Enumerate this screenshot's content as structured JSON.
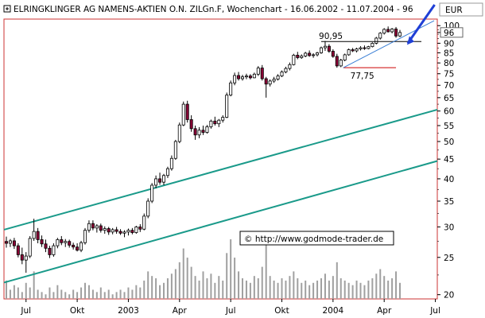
{
  "title_bar": {
    "title": "ELRINGKLINGER AG NAMENS-AKTIEN O.N. ZILGn.F, Wochenchart - 16.06.2002 - 11.07.2004 - 96",
    "currency": "EUR"
  },
  "watermark": "© http://www.godmode-trader.de",
  "chart_data": {
    "type": "candlestick",
    "scale": "log",
    "ylim": [
      19.5,
      104
    ],
    "y_ticks": [
      20,
      25,
      30,
      35,
      40,
      45,
      50,
      55,
      60,
      65,
      70,
      75,
      80,
      85,
      90,
      96,
      100
    ],
    "last_price_label": "96",
    "x_ticks": [
      {
        "label": "Jul",
        "t": 5
      },
      {
        "label": "Okt",
        "t": 18
      },
      {
        "label": "2003",
        "t": 31
      },
      {
        "label": "Apr",
        "t": 44
      },
      {
        "label": "Jul",
        "t": 57
      },
      {
        "label": "Okt",
        "t": 70
      },
      {
        "label": "2004",
        "t": 83
      },
      {
        "label": "Apr",
        "t": 96
      },
      {
        "label": "Jul",
        "t": 109
      }
    ],
    "candles": [
      [
        27.5,
        28.3,
        26.5,
        27.2
      ],
      [
        27.2,
        27.9,
        26.6,
        27.6
      ],
      [
        27.6,
        28.1,
        26.3,
        26.8
      ],
      [
        26.8,
        27.2,
        25.0,
        25.4
      ],
      [
        25.4,
        26.5,
        24.0,
        24.6
      ],
      [
        24.6,
        25.8,
        22.8,
        25.2
      ],
      [
        25.2,
        28.4,
        24.9,
        28.0
      ],
      [
        28.0,
        31.5,
        27.6,
        29.2
      ],
      [
        29.2,
        29.8,
        27.2,
        27.8
      ],
      [
        27.8,
        28.5,
        26.6,
        27.1
      ],
      [
        27.1,
        27.8,
        25.8,
        26.4
      ],
      [
        26.4,
        26.8,
        24.9,
        25.4
      ],
      [
        25.4,
        27.2,
        25.1,
        26.8
      ],
      [
        26.8,
        28.1,
        26.4,
        27.8
      ],
      [
        27.8,
        28.4,
        26.9,
        27.3
      ],
      [
        27.3,
        27.9,
        26.6,
        27.5
      ],
      [
        27.5,
        27.8,
        26.5,
        26.9
      ],
      [
        26.9,
        27.3,
        26.2,
        26.6
      ],
      [
        26.6,
        27.2,
        25.9,
        26.1
      ],
      [
        26.1,
        27.6,
        25.8,
        27.3
      ],
      [
        27.3,
        29.8,
        27.0,
        29.4
      ],
      [
        29.4,
        31.2,
        29.0,
        30.6
      ],
      [
        30.6,
        31.2,
        29.4,
        29.8
      ],
      [
        29.8,
        30.5,
        29.0,
        30.2
      ],
      [
        30.2,
        30.6,
        29.0,
        29.4
      ],
      [
        29.4,
        30.1,
        28.8,
        29.7
      ],
      [
        29.7,
        30.0,
        28.6,
        29.1
      ],
      [
        29.1,
        29.8,
        28.7,
        29.5
      ],
      [
        29.5,
        30.0,
        28.8,
        29.2
      ],
      [
        29.2,
        29.6,
        28.6,
        28.9
      ],
      [
        28.9,
        29.4,
        28.2,
        29.1
      ],
      [
        29.1,
        29.7,
        28.5,
        29.4
      ],
      [
        29.4,
        29.8,
        28.7,
        29.0
      ],
      [
        29.0,
        30.2,
        28.8,
        30.0
      ],
      [
        30.0,
        30.5,
        29.1,
        29.6
      ],
      [
        29.6,
        32.5,
        29.4,
        32.0
      ],
      [
        32.0,
        35.6,
        31.6,
        35.0
      ],
      [
        35.0,
        39.0,
        34.6,
        38.5
      ],
      [
        38.5,
        40.8,
        37.8,
        40.0
      ],
      [
        40.0,
        41.5,
        38.6,
        39.2
      ],
      [
        39.2,
        41.2,
        38.5,
        40.8
      ],
      [
        40.8,
        43.0,
        40.2,
        42.5
      ],
      [
        42.5,
        46.0,
        42.0,
        45.2
      ],
      [
        45.2,
        50.5,
        44.8,
        50.0
      ],
      [
        50.0,
        56.0,
        49.5,
        55.2
      ],
      [
        55.2,
        63.5,
        54.8,
        62.5
      ],
      [
        62.5,
        63.8,
        56.0,
        57.0
      ],
      [
        57.0,
        58.5,
        53.0,
        54.0
      ],
      [
        54.0,
        55.0,
        50.5,
        52.0
      ],
      [
        52.0,
        54.5,
        51.0,
        53.5
      ],
      [
        53.5,
        55.0,
        52.0,
        52.8
      ],
      [
        52.8,
        55.2,
        52.4,
        54.6
      ],
      [
        54.6,
        57.0,
        54.0,
        56.5
      ],
      [
        56.5,
        58.0,
        55.0,
        55.6
      ],
      [
        55.6,
        57.2,
        54.5,
        56.8
      ],
      [
        56.8,
        58.5,
        56.0,
        57.8
      ],
      [
        57.8,
        67.0,
        57.5,
        66.0
      ],
      [
        66.0,
        72.0,
        65.5,
        71.0
      ],
      [
        71.0,
        75.5,
        70.0,
        74.2
      ],
      [
        74.2,
        75.8,
        72.0,
        72.8
      ],
      [
        72.8,
        74.5,
        72.0,
        73.6
      ],
      [
        73.6,
        75.0,
        72.6,
        74.0
      ],
      [
        74.0,
        74.8,
        72.5,
        73.2
      ],
      [
        73.2,
        75.5,
        73.0,
        74.8
      ],
      [
        74.8,
        78.5,
        74.0,
        77.6
      ],
      [
        77.6,
        79.0,
        72.0,
        72.8
      ],
      [
        72.8,
        73.6,
        65.0,
        70.5
      ],
      [
        70.5,
        72.5,
        69.5,
        71.8
      ],
      [
        71.8,
        73.6,
        71.0,
        72.6
      ],
      [
        72.6,
        74.8,
        72.0,
        74.0
      ],
      [
        74.0,
        76.5,
        73.5,
        75.8
      ],
      [
        75.8,
        78.2,
        75.2,
        77.4
      ],
      [
        77.4,
        80.2,
        76.5,
        79.2
      ],
      [
        79.2,
        84.5,
        78.8,
        83.8
      ],
      [
        83.8,
        85.5,
        81.8,
        82.6
      ],
      [
        82.6,
        84.2,
        82.0,
        83.4
      ],
      [
        83.4,
        85.5,
        82.8,
        84.8
      ],
      [
        84.8,
        86.2,
        83.0,
        83.6
      ],
      [
        83.6,
        84.8,
        82.5,
        84.0
      ],
      [
        84.0,
        85.5,
        83.2,
        85.0
      ],
      [
        85.0,
        88.2,
        84.5,
        87.6
      ],
      [
        87.6,
        91.2,
        86.0,
        88.4
      ],
      [
        88.4,
        89.5,
        85.0,
        85.8
      ],
      [
        85.8,
        86.8,
        82.5,
        83.2
      ],
      [
        83.2,
        84.5,
        77.75,
        78.6
      ],
      [
        78.6,
        82.0,
        78.0,
        81.4
      ],
      [
        81.4,
        84.6,
        80.8,
        84.0
      ],
      [
        84.0,
        87.2,
        83.5,
        86.6
      ],
      [
        86.6,
        87.5,
        85.4,
        86.0
      ],
      [
        86.0,
        87.6,
        85.2,
        87.0
      ],
      [
        87.0,
        88.4,
        86.2,
        87.6
      ],
      [
        87.6,
        88.8,
        86.5,
        87.2
      ],
      [
        87.2,
        88.6,
        86.8,
        88.2
      ],
      [
        88.2,
        90.5,
        87.8,
        90.0
      ],
      [
        90.0,
        93.5,
        89.4,
        92.8
      ],
      [
        92.8,
        96.2,
        92.0,
        95.6
      ],
      [
        95.6,
        98.5,
        94.8,
        97.8
      ],
      [
        97.8,
        99.5,
        96.0,
        96.4
      ],
      [
        96.4,
        98.6,
        95.5,
        98.0
      ],
      [
        98.0,
        99.2,
        93.0,
        94.0
      ],
      [
        94.0,
        97.5,
        93.4,
        96.0
      ]
    ],
    "volume": [
      8,
      4,
      6,
      5,
      3,
      7,
      5,
      12,
      4,
      3,
      2,
      5,
      3,
      6,
      4,
      3,
      2,
      4,
      3,
      5,
      7,
      6,
      4,
      3,
      5,
      3,
      4,
      2,
      3,
      4,
      3,
      5,
      4,
      6,
      5,
      8,
      12,
      10,
      9,
      6,
      7,
      9,
      11,
      13,
      16,
      22,
      18,
      14,
      10,
      8,
      12,
      9,
      11,
      7,
      10,
      8,
      20,
      26,
      18,
      12,
      9,
      8,
      7,
      10,
      9,
      14,
      24,
      10,
      8,
      7,
      9,
      8,
      10,
      12,
      9,
      7,
      8,
      6,
      7,
      8,
      9,
      11,
      8,
      10,
      16,
      9,
      8,
      7,
      6,
      8,
      7,
      6,
      8,
      9,
      11,
      13,
      10,
      8,
      9,
      12,
      7
    ],
    "annotations": [
      {
        "label": "90,95",
        "value": 90.95
      },
      {
        "label": "77,75",
        "value": 77.75
      }
    ]
  }
}
